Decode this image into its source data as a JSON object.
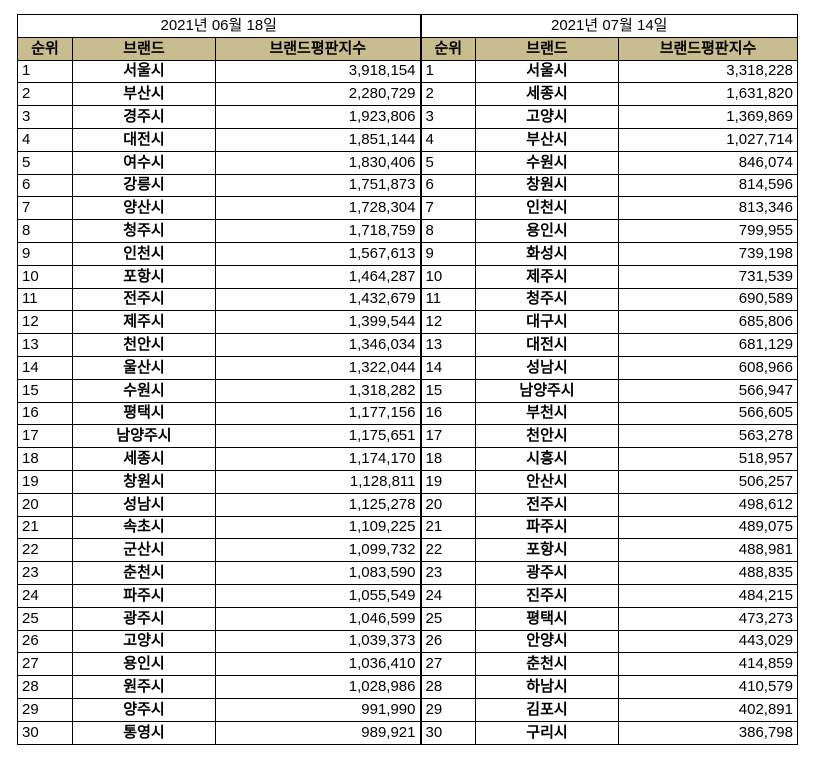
{
  "colors": {
    "header_bg": "#c9bc8f",
    "grid": "#000000"
  },
  "left": {
    "date": "2021년 06월 18일",
    "headers": [
      "순위",
      "브랜드",
      "브랜드평판지수"
    ],
    "rows": [
      [
        "1",
        "서울시",
        "3,918,154"
      ],
      [
        "2",
        "부산시",
        "2,280,729"
      ],
      [
        "3",
        "경주시",
        "1,923,806"
      ],
      [
        "4",
        "대전시",
        "1,851,144"
      ],
      [
        "5",
        "여수시",
        "1,830,406"
      ],
      [
        "6",
        "강릉시",
        "1,751,873"
      ],
      [
        "7",
        "양산시",
        "1,728,304"
      ],
      [
        "8",
        "청주시",
        "1,718,759"
      ],
      [
        "9",
        "인천시",
        "1,567,613"
      ],
      [
        "10",
        "포항시",
        "1,464,287"
      ],
      [
        "11",
        "전주시",
        "1,432,679"
      ],
      [
        "12",
        "제주시",
        "1,399,544"
      ],
      [
        "13",
        "천안시",
        "1,346,034"
      ],
      [
        "14",
        "울산시",
        "1,322,044"
      ],
      [
        "15",
        "수원시",
        "1,318,282"
      ],
      [
        "16",
        "평택시",
        "1,177,156"
      ],
      [
        "17",
        "남양주시",
        "1,175,651"
      ],
      [
        "18",
        "세종시",
        "1,174,170"
      ],
      [
        "19",
        "창원시",
        "1,128,811"
      ],
      [
        "20",
        "성남시",
        "1,125,278"
      ],
      [
        "21",
        "속초시",
        "1,109,225"
      ],
      [
        "22",
        "군산시",
        "1,099,732"
      ],
      [
        "23",
        "춘천시",
        "1,083,590"
      ],
      [
        "24",
        "파주시",
        "1,055,549"
      ],
      [
        "25",
        "광주시",
        "1,046,599"
      ],
      [
        "26",
        "고양시",
        "1,039,373"
      ],
      [
        "27",
        "용인시",
        "1,036,410"
      ],
      [
        "28",
        "원주시",
        "1,028,986"
      ],
      [
        "29",
        "양주시",
        "991,990"
      ],
      [
        "30",
        "통영시",
        "989,921"
      ]
    ]
  },
  "right": {
    "date": "2021년 07월 14일",
    "headers": [
      "순위",
      "브랜드",
      "브랜드평판지수"
    ],
    "rows": [
      [
        "1",
        "서울시",
        "3,318,228"
      ],
      [
        "2",
        "세종시",
        "1,631,820"
      ],
      [
        "3",
        "고양시",
        "1,369,869"
      ],
      [
        "4",
        "부산시",
        "1,027,714"
      ],
      [
        "5",
        "수원시",
        "846,074"
      ],
      [
        "6",
        "창원시",
        "814,596"
      ],
      [
        "7",
        "인천시",
        "813,346"
      ],
      [
        "8",
        "용인시",
        "799,955"
      ],
      [
        "9",
        "화성시",
        "739,198"
      ],
      [
        "10",
        "제주시",
        "731,539"
      ],
      [
        "11",
        "청주시",
        "690,589"
      ],
      [
        "12",
        "대구시",
        "685,806"
      ],
      [
        "13",
        "대전시",
        "681,129"
      ],
      [
        "14",
        "성남시",
        "608,966"
      ],
      [
        "15",
        "남양주시",
        "566,947"
      ],
      [
        "16",
        "부천시",
        "566,605"
      ],
      [
        "17",
        "천안시",
        "563,278"
      ],
      [
        "18",
        "시흥시",
        "518,957"
      ],
      [
        "19",
        "안산시",
        "506,257"
      ],
      [
        "20",
        "전주시",
        "498,612"
      ],
      [
        "21",
        "파주시",
        "489,075"
      ],
      [
        "22",
        "포항시",
        "488,981"
      ],
      [
        "23",
        "광주시",
        "488,835"
      ],
      [
        "24",
        "진주시",
        "484,215"
      ],
      [
        "25",
        "평택시",
        "473,273"
      ],
      [
        "26",
        "안양시",
        "443,029"
      ],
      [
        "27",
        "춘천시",
        "414,859"
      ],
      [
        "28",
        "하남시",
        "410,579"
      ],
      [
        "29",
        "김포시",
        "402,891"
      ],
      [
        "30",
        "구리시",
        "386,798"
      ]
    ]
  }
}
